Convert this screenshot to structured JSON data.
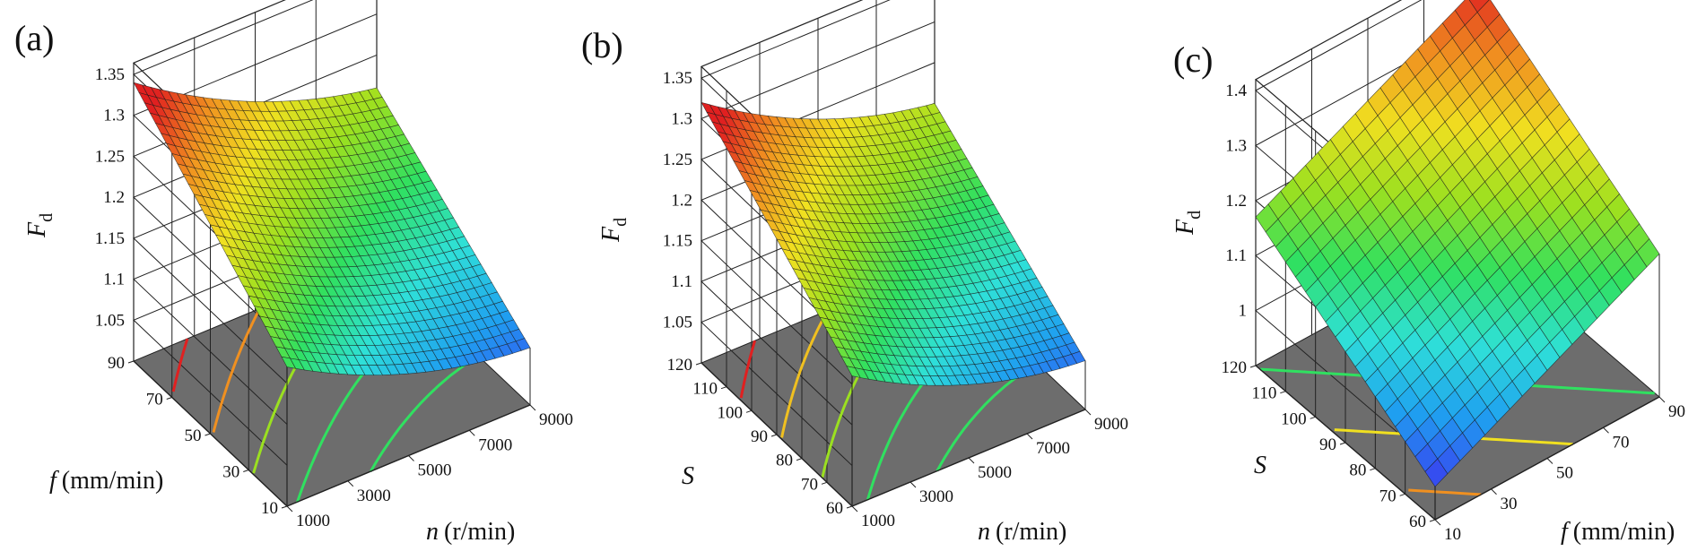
{
  "figure": {
    "background": "#ffffff",
    "floor_color": "#6d6d6d",
    "frame_color": "#222222"
  },
  "colors": {
    "colormap": [
      "#3a3af0",
      "#1fa0f0",
      "#2fe0d8",
      "#30e060",
      "#9be020",
      "#f0e020",
      "#f09020",
      "#e02020"
    ]
  },
  "chart_data": [
    {
      "type": "surface3d",
      "panel_label": "(a)",
      "zlabel": "F",
      "zlabel_sub": "d",
      "xlabel_var": "n",
      "xlabel_unit": "(r/min)",
      "ylabel_var": "f",
      "ylabel_unit": "(mm/min)",
      "x_range": [
        1000,
        9000
      ],
      "y_range": [
        10,
        90
      ],
      "z_range": [
        1.0,
        1.35
      ],
      "x_ticks": [
        "1000",
        "3000",
        "5000",
        "7000",
        "9000"
      ],
      "y_ticks": [
        "10",
        "30",
        "50",
        "70",
        "90"
      ],
      "z_ticks": [
        "1.05",
        "1.1",
        "1.15",
        "1.2",
        "1.25",
        "1.3",
        "1.35"
      ],
      "corner_values": {
        "xmin_ymin": 1.15,
        "xmax_ymin": 1.05,
        "xmin_ymax": 1.32,
        "xmax_ymax": 1.19
      },
      "curvature": 0.02,
      "contour_colors": [
        "#e02020",
        "#f09020",
        "#9be020",
        "#30e060",
        "#30e060",
        "#2fe0d8"
      ]
    },
    {
      "type": "surface3d",
      "panel_label": "(b)",
      "zlabel": "F",
      "zlabel_sub": "d",
      "xlabel_var": "n",
      "xlabel_unit": "(r/min)",
      "ylabel_var": "S",
      "ylabel_unit": "",
      "x_range": [
        1000,
        9000
      ],
      "y_range": [
        60,
        120
      ],
      "z_range": [
        1.0,
        1.35
      ],
      "x_ticks": [
        "1000",
        "3000",
        "5000",
        "7000",
        "9000"
      ],
      "y_ticks": [
        "60",
        "70",
        "80",
        "90",
        "100",
        "110",
        "120"
      ],
      "z_ticks": [
        "1.05",
        "1.1",
        "1.15",
        "1.2",
        "1.25",
        "1.3",
        "1.35"
      ],
      "corner_values": {
        "xmin_ymin": 1.14,
        "xmax_ymin": 1.04,
        "xmin_ymax": 1.3,
        "xmax_ymax": 1.18
      },
      "curvature": 0.02,
      "contour_colors": [
        "#e02020",
        "#f0c020",
        "#9be020",
        "#30e060",
        "#30e060",
        "#2fe0d8"
      ]
    },
    {
      "type": "surface3d",
      "panel_label": "(c)",
      "zlabel": "F",
      "zlabel_sub": "d",
      "xlabel_var": "f",
      "xlabel_unit": "(mm/min)",
      "ylabel_var": "S",
      "ylabel_unit": "",
      "x_range": [
        10,
        90
      ],
      "y_range": [
        60,
        120
      ],
      "z_range": [
        0.9,
        1.4
      ],
      "x_ticks": [
        "10",
        "30",
        "50",
        "70",
        "90"
      ],
      "y_ticks": [
        "60",
        "70",
        "80",
        "90",
        "100",
        "110",
        "120"
      ],
      "z_ticks": [
        "1",
        "1.1",
        "1.2",
        "1.3",
        "1.4"
      ],
      "corner_values": {
        "xmin_ymin": 0.96,
        "xmax_ymin": 1.16,
        "xmin_ymax": 1.17,
        "xmax_ymax": 1.37
      },
      "curvature": 0.0,
      "contour_colors": [
        "#2050f0",
        "#2fe0d8",
        "#30e060",
        "#f0e020",
        "#f09020"
      ]
    }
  ]
}
